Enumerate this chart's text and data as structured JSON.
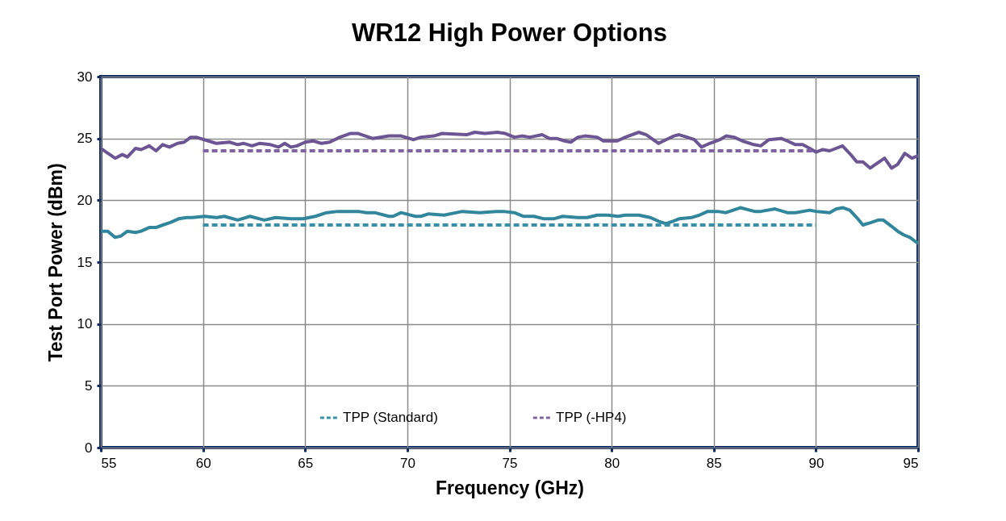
{
  "chart_data": {
    "type": "line",
    "title": "WR12 High Power Options",
    "xlabel": "Frequency (GHz)",
    "ylabel": "Test Port Power (dBm)",
    "xlim": [
      55,
      95
    ],
    "xticks": [
      55,
      60,
      65,
      70,
      75,
      80,
      85,
      90,
      95
    ],
    "ylim": [
      0,
      30
    ],
    "yticks": [
      0,
      5,
      10,
      15,
      20,
      25,
      30
    ],
    "grid": true,
    "legend": "bottom",
    "line_style": "solid",
    "marker": "none",
    "series": [
      {
        "color": "#6b5592",
        "x": [
          55,
          55.26,
          55.7,
          56.05,
          56.3,
          56.7,
          56.97,
          57.37,
          57.7,
          58.03,
          58.36,
          58.75,
          59.08,
          59.4,
          59.67,
          60.26,
          60.66,
          61.3,
          61.7,
          62.0,
          62.4,
          62.76,
          63.3,
          63.7,
          64.0,
          64.3,
          64.6,
          65.0,
          65.4,
          65.8,
          66.2,
          66.7,
          67.2,
          67.6,
          68.3,
          69.1,
          69.7,
          70.3,
          70.66,
          71.3,
          71.7,
          72.9,
          73.3,
          73.8,
          74.4,
          74.8,
          75.24,
          75.6,
          76.0,
          76.6,
          76.96,
          77.3,
          77.7,
          78.0,
          78.35,
          78.7,
          79.3,
          79.6,
          80.27,
          80.67,
          81.33,
          81.7,
          82.3,
          82.66,
          83.05,
          83.3,
          83.7,
          84.05,
          84.4,
          84.8,
          85.3,
          85.6,
          86.0,
          86.4,
          86.96,
          87.3,
          87.7,
          88.3,
          88.6,
          89.0,
          89.35,
          89.7,
          90.0,
          90.34,
          90.67,
          91.3,
          91.7,
          92.0,
          92.3,
          92.66,
          93.0,
          93.36,
          93.7,
          94.0,
          94.35,
          94.7,
          95.0
        ],
        "values": [
          24.2,
          23.9,
          23.4,
          23.7,
          23.5,
          24.2,
          24.1,
          24.4,
          24.0,
          24.5,
          24.3,
          24.6,
          24.7,
          25.1,
          25.1,
          24.8,
          24.6,
          24.7,
          24.5,
          24.6,
          24.4,
          24.6,
          24.5,
          24.3,
          24.6,
          24.3,
          24.4,
          24.7,
          24.8,
          24.6,
          24.7,
          25.1,
          25.4,
          25.4,
          25.0,
          25.2,
          25.2,
          24.9,
          25.1,
          25.2,
          25.4,
          25.3,
          25.5,
          25.4,
          25.5,
          25.4,
          25.1,
          25.2,
          25.1,
          25.3,
          25.0,
          25.0,
          24.8,
          24.7,
          25.1,
          25.2,
          25.1,
          24.8,
          24.8,
          25.1,
          25.5,
          25.3,
          24.6,
          24.9,
          25.2,
          25.3,
          25.1,
          24.9,
          24.3,
          24.6,
          24.9,
          25.2,
          25.1,
          24.8,
          24.5,
          24.4,
          24.9,
          25.0,
          24.8,
          24.5,
          24.5,
          24.2,
          23.9,
          24.1,
          24.0,
          24.4,
          23.7,
          23.1,
          23.1,
          22.6,
          23.0,
          23.4,
          22.6,
          22.9,
          23.8,
          23.4,
          23.6
        ]
      },
      {
        "color": "#31869b",
        "x": [
          55,
          55.33,
          55.7,
          55.97,
          56.3,
          56.7,
          56.97,
          57.37,
          57.7,
          58.03,
          58.4,
          58.8,
          59.2,
          59.47,
          60.07,
          60.66,
          61.05,
          61.7,
          62.3,
          63.0,
          63.55,
          64.3,
          64.9,
          65.5,
          66.05,
          66.6,
          67.6,
          68.0,
          68.4,
          69.1,
          69.3,
          69.7,
          70.4,
          70.66,
          71.05,
          71.8,
          72.7,
          73.55,
          74.35,
          74.7,
          75.24,
          75.7,
          76.2,
          76.7,
          77.16,
          77.6,
          78.35,
          78.8,
          79.3,
          79.8,
          80.3,
          80.67,
          81.33,
          81.9,
          82.3,
          82.66,
          83.0,
          83.3,
          83.9,
          84.3,
          84.7,
          85.2,
          85.6,
          86.3,
          87.0,
          87.3,
          88.0,
          88.6,
          89.0,
          89.7,
          90.0,
          90.67,
          91.0,
          91.33,
          91.66,
          92.0,
          92.3,
          92.7,
          93.05,
          93.3,
          93.7,
          94.0,
          94.3,
          94.6,
          95.0
        ],
        "values": [
          17.5,
          17.5,
          17.0,
          17.1,
          17.5,
          17.4,
          17.5,
          17.8,
          17.8,
          18.0,
          18.2,
          18.5,
          18.6,
          18.6,
          18.7,
          18.6,
          18.7,
          18.4,
          18.7,
          18.4,
          18.6,
          18.5,
          18.5,
          18.7,
          19.0,
          19.1,
          19.1,
          19.0,
          19.0,
          18.7,
          18.7,
          19.0,
          18.7,
          18.7,
          18.9,
          18.8,
          19.1,
          19.0,
          19.1,
          19.1,
          19.0,
          18.7,
          18.7,
          18.5,
          18.5,
          18.7,
          18.6,
          18.6,
          18.8,
          18.8,
          18.7,
          18.8,
          18.8,
          18.6,
          18.3,
          18.1,
          18.3,
          18.5,
          18.6,
          18.8,
          19.1,
          19.1,
          19.0,
          19.4,
          19.1,
          19.1,
          19.3,
          19.0,
          19.0,
          19.2,
          19.1,
          19.0,
          19.3,
          19.4,
          19.2,
          18.6,
          18.0,
          18.2,
          18.4,
          18.4,
          17.9,
          17.5,
          17.2,
          17.0,
          16.5
        ]
      },
      {
        "name": "TPP (Standard)",
        "color": "#3a8fa8",
        "line_style": "dashed",
        "x": [
          60,
          90
        ],
        "values": [
          18,
          18
        ]
      },
      {
        "name": "TPP (-HP4)",
        "color": "#8064a2",
        "line_style": "dashed",
        "x": [
          60,
          90
        ],
        "values": [
          24,
          24
        ]
      }
    ]
  }
}
